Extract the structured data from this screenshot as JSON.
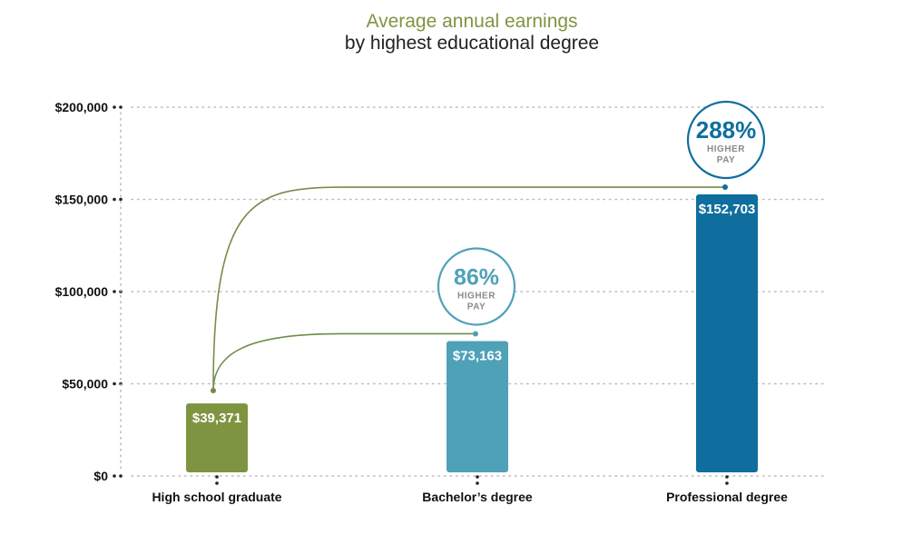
{
  "chart_data": {
    "type": "bar",
    "title": "Average annual earnings",
    "subtitle": "by highest educational degree",
    "categories": [
      "High school graduate",
      "Bachelor’s degree",
      "Professional degree"
    ],
    "values": [
      39371,
      73163,
      152703
    ],
    "value_labels": [
      "$39,371",
      "$73,163",
      "$152,703"
    ],
    "ylim": [
      0,
      200000
    ],
    "y_ticks": [
      0,
      50000,
      100000,
      150000,
      200000
    ],
    "y_tick_labels": [
      "$0",
      "$50,000",
      "$100,000",
      "$150,000",
      "$200,000"
    ],
    "grid": "horizontal-dotted",
    "bar_colors": [
      "#7f9441",
      "#4fa1b8",
      "#0f6e9e"
    ],
    "annotations": [
      {
        "from": "High school graduate",
        "to": "Bachelor’s degree",
        "percent": "86%",
        "text_line1": "HIGHER",
        "text_line2": "PAY",
        "color": "#4fa1b8",
        "line_color": "#6e8c4a"
      },
      {
        "from": "High school graduate",
        "to": "Professional degree",
        "percent": "288%",
        "text_line1": "HIGHER",
        "text_line2": "PAY",
        "color": "#0f6e9e",
        "line_color": "#7a8c4a"
      }
    ]
  }
}
